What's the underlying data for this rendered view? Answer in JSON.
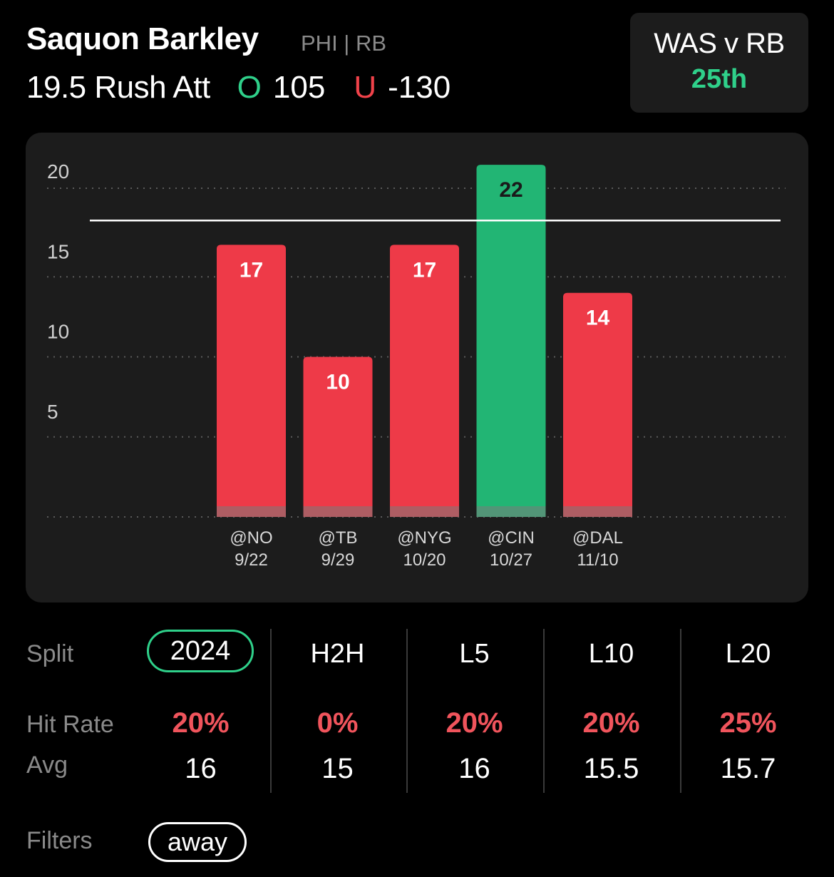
{
  "player": {
    "name": "Saquon Barkley",
    "meta": "PHI | RB"
  },
  "prop": {
    "line": "19.5 Rush Att",
    "over_letter": "O",
    "over_odds": "105",
    "under_letter": "U",
    "under_odds": "-130"
  },
  "matchup": {
    "title": "WAS v RB",
    "rank": "25th"
  },
  "colors": {
    "over_green": "#2fd08a",
    "under_red": "#f0424a",
    "bar_red": "#ee3a48",
    "bar_green": "#22b574",
    "card_bg": "#1c1c1c"
  },
  "chart_data": {
    "type": "bar",
    "categories": [
      "@NO 9/22",
      "@TB 9/29",
      "@NYG 10/20",
      "@CIN 10/27",
      "@DAL 11/10"
    ],
    "opponents": [
      "@NO",
      "@TB",
      "@NYG",
      "@CIN",
      "@DAL"
    ],
    "dates": [
      "9/22",
      "9/29",
      "10/20",
      "10/27",
      "11/10"
    ],
    "values": [
      17,
      10,
      17,
      22,
      14
    ],
    "line": 19.5,
    "yticks": [
      5,
      10,
      15,
      20
    ],
    "ylim": [
      0,
      20
    ],
    "grid": true,
    "title": "",
    "xlabel": "",
    "ylabel": ""
  },
  "stats": {
    "split_label": "Split",
    "hit_rate_label": "Hit Rate",
    "avg_label": "Avg",
    "columns": [
      {
        "split": "2024",
        "hit_rate": "20%",
        "avg": "16"
      },
      {
        "split": "H2H",
        "hit_rate": "0%",
        "avg": "15"
      },
      {
        "split": "L5",
        "hit_rate": "20%",
        "avg": "16"
      },
      {
        "split": "L10",
        "hit_rate": "20%",
        "avg": "15.5"
      },
      {
        "split": "L20",
        "hit_rate": "25%",
        "avg": "15.7"
      }
    ]
  },
  "filters": {
    "label": "Filters",
    "items": [
      "away"
    ]
  }
}
